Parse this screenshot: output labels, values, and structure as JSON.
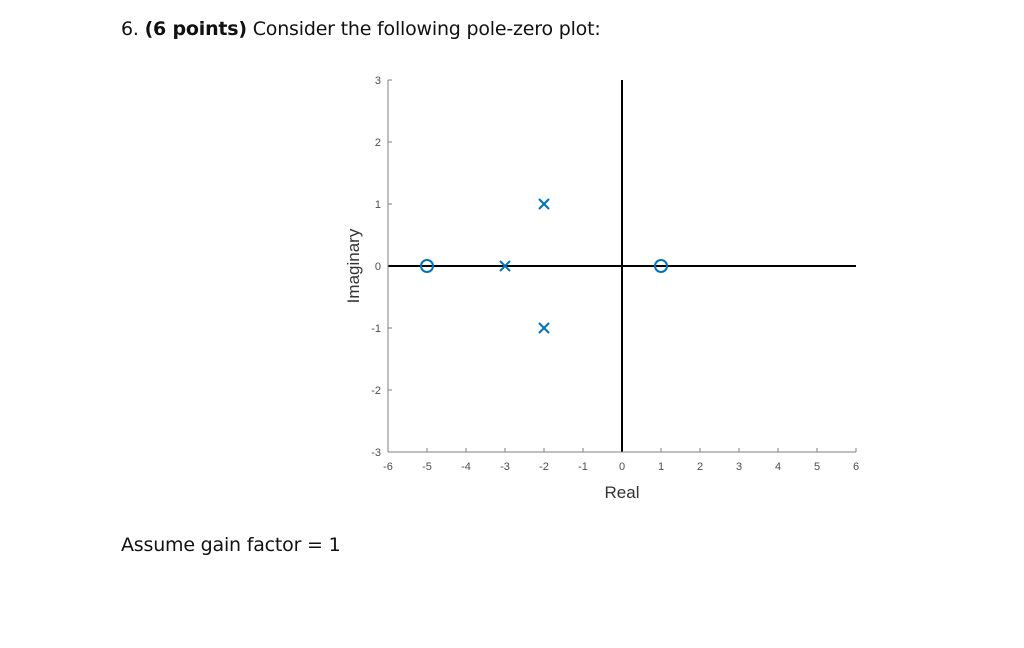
{
  "question": {
    "number": "6.",
    "points": "(6 points)",
    "prompt": "Consider the following pole-zero plot:"
  },
  "note": "Assume gain factor = 1",
  "colors": {
    "marker": "#0072BD",
    "axis": "#808080",
    "reference_lines": "#000000",
    "tick_text": "#4d4d4d"
  },
  "chart_data": {
    "type": "scatter",
    "title": "",
    "xlabel": "Real",
    "ylabel": "Imaginary",
    "xlim": [
      -6,
      6
    ],
    "ylim": [
      -3,
      3
    ],
    "xticks": [
      -6,
      -5,
      -4,
      -3,
      -2,
      -1,
      0,
      1,
      2,
      3,
      4,
      5,
      6
    ],
    "yticks": [
      -3,
      -2,
      -1,
      0,
      1,
      2,
      3
    ],
    "grid": false,
    "reference_lines": [
      "x = 0",
      "y = 0"
    ],
    "series": [
      {
        "name": "poles",
        "marker": "x",
        "points": [
          {
            "real": -3,
            "imag": 0
          },
          {
            "real": -2,
            "imag": 1
          },
          {
            "real": -2,
            "imag": -1
          }
        ]
      },
      {
        "name": "zeros",
        "marker": "o",
        "points": [
          {
            "real": -5,
            "imag": 0
          },
          {
            "real": 1,
            "imag": 0
          }
        ]
      }
    ]
  }
}
